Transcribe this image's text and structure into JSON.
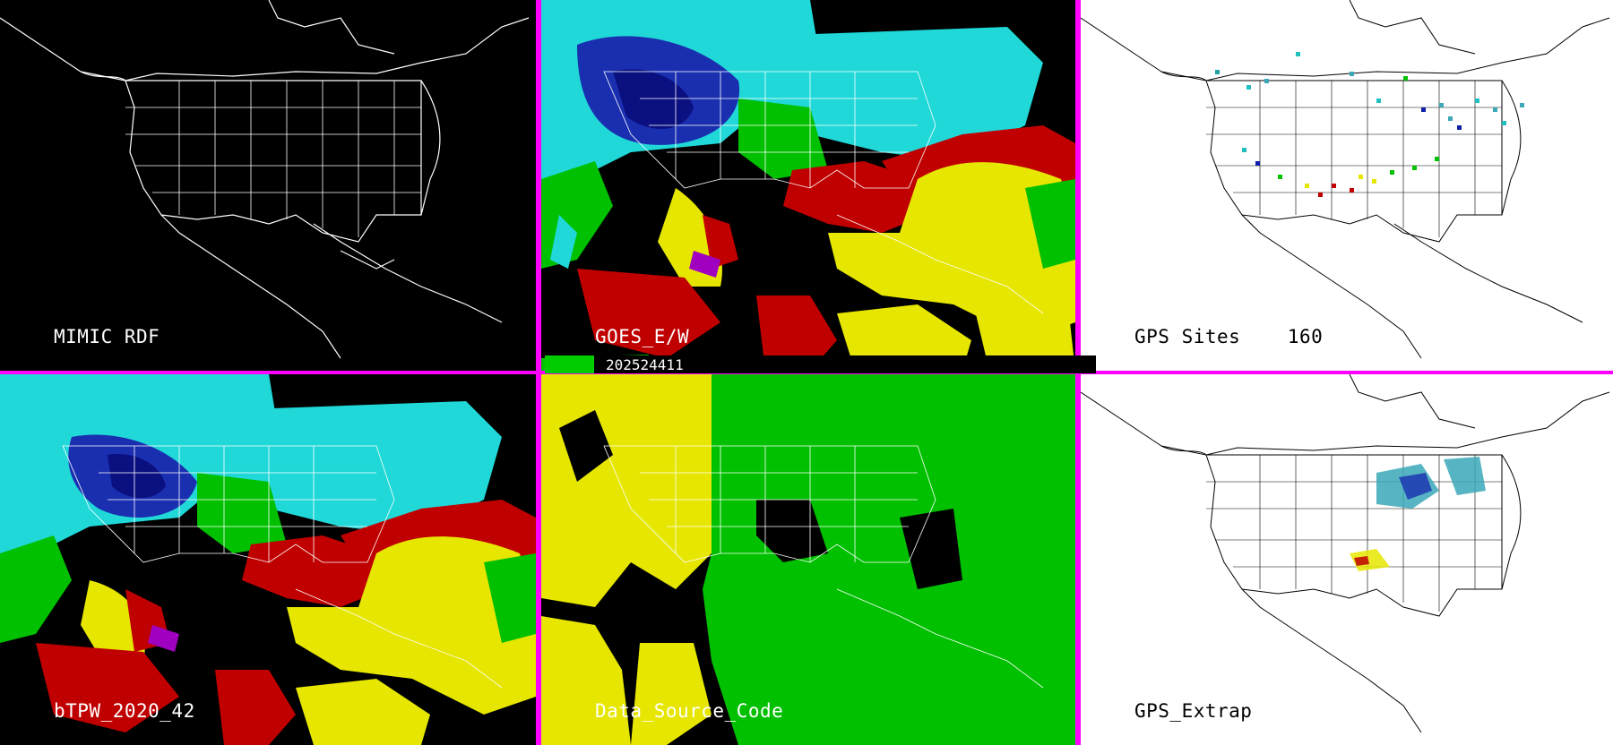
{
  "panels": [
    {
      "id": "mimic-rdf",
      "label": "MIMIC RDF",
      "background": "black",
      "lines": "#ffffff"
    },
    {
      "id": "goes-ew",
      "label": "GOES_E/W",
      "background": "black",
      "lines": "#ffffff"
    },
    {
      "id": "gps-sites",
      "label": "GPS Sites    160",
      "background": "white",
      "lines": "#000000"
    },
    {
      "id": "btpw",
      "label": "bTPW_2020_42",
      "background": "black",
      "lines": "#ffffff"
    },
    {
      "id": "data-source-code",
      "label": "Data_Source_Code",
      "background": "black",
      "lines": "#ffffff"
    },
    {
      "id": "gps-extrap",
      "label": "GPS_Extrap",
      "background": "white",
      "lines": "#000000"
    }
  ],
  "timestamp": "202524411",
  "colors": {
    "separator": "#ff00ff",
    "blue": "#1020a8",
    "cyan": "#20d8d8",
    "green": "#00c000",
    "yellow": "#e6e600",
    "red": "#c00000",
    "purple": "#a000c0",
    "teal": "#3aa8b8"
  }
}
